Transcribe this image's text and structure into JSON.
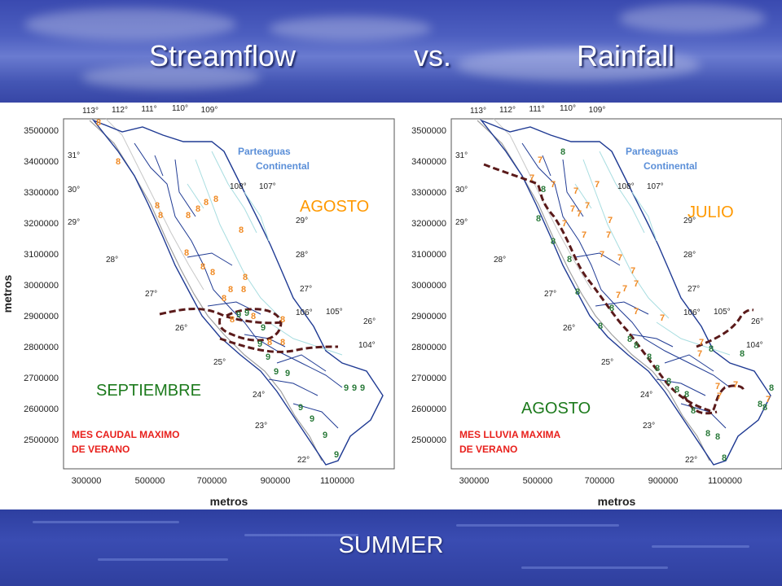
{
  "slide": {
    "title_left": "Streamflow",
    "title_mid": "vs.",
    "title_right": "Rainfall",
    "footer": "SUMMER"
  },
  "colors": {
    "background": "#3b4aa8",
    "title_text": "#ffffff",
    "basin_outline": "#1f3a93",
    "rivers": "#a8dde0",
    "coast": "#9a9a9a",
    "month_orange": "#f08a24",
    "month_green": "#2a7a3a",
    "month_label_orange": "#ff9900",
    "month_label_green": "#1c7a1c",
    "dashed_boundary": "#5a1a1a",
    "legend_red": "#e8201c",
    "parteaguas_blue": "#5b8fd8"
  },
  "maps": [
    {
      "id": "streamflow",
      "y_ticks": [
        "3500000",
        "3400000",
        "3300000",
        "3200000",
        "3100000",
        "3000000",
        "2900000",
        "2800000",
        "2700000",
        "2600000",
        "2500000"
      ],
      "x_ticks": [
        "300000",
        "500000",
        "700000",
        "900000",
        "1100000"
      ],
      "lon_labels": [
        "113°",
        "112°",
        "111°",
        "110°",
        "109°"
      ],
      "interior_labels": [
        "108°",
        "107°",
        "106°",
        "105°",
        "104°",
        "31°",
        "30°",
        "29°",
        "28°",
        "27°",
        "26°",
        "25°",
        "24°",
        "23°",
        "22°",
        "29°",
        "28°",
        "27°",
        "26°"
      ],
      "x_axis_title": "metros",
      "y_axis_title": "metros",
      "divide_label_1": "Parteaguas",
      "divide_label_2": "Continental",
      "month_top": "AGOSTO",
      "month_bottom": "SEPTIEMBRE",
      "legend_line1": "MES CAUDAL MAXIMO",
      "legend_line2": "DE VERANO",
      "digits": [
        "8",
        "8",
        "8",
        "8",
        "8",
        "8",
        "8",
        "8",
        "8",
        "8",
        "8",
        "8",
        "8",
        "8",
        "8",
        "8",
        "8",
        "8",
        "8",
        "8",
        "8",
        "9",
        "9",
        "9",
        "9",
        "9",
        "9",
        "9",
        "9",
        "9",
        "9",
        "9",
        "9",
        "9",
        "9"
      ]
    },
    {
      "id": "rainfall",
      "y_ticks": [
        "3500000",
        "3400000",
        "3300000",
        "3200000",
        "3100000",
        "3000000",
        "2900000",
        "2800000",
        "2700000",
        "2600000",
        "2500000"
      ],
      "x_ticks": [
        "300000",
        "500000",
        "700000",
        "900000",
        "1100000"
      ],
      "lon_labels": [
        "113°",
        "112°",
        "111°",
        "110°",
        "109°"
      ],
      "interior_labels": [
        "108°",
        "107°",
        "106°",
        "105°",
        "104°",
        "31°",
        "30°",
        "29°",
        "28°",
        "27°",
        "26°",
        "25°",
        "24°",
        "23°",
        "22°",
        "29°",
        "28°",
        "27°",
        "26°"
      ],
      "x_axis_title": "metros",
      "divide_label_1": "Parteaguas",
      "divide_label_2": "Continental",
      "month_top": "JULIO",
      "month_bottom": "AGOSTO",
      "legend_line1": "MES LLUVIA MAXIMA",
      "legend_line2": "DE VERANO",
      "digits": [
        "7",
        "7",
        "7",
        "7",
        "7",
        "7",
        "7",
        "7",
        "7",
        "7",
        "7",
        "7",
        "7",
        "7",
        "7",
        "7",
        "7",
        "7",
        "7",
        "7",
        "7",
        "7",
        "7",
        "7",
        "7",
        "7",
        "8",
        "8",
        "8",
        "8",
        "8",
        "8",
        "8",
        "8",
        "8",
        "8",
        "8",
        "8",
        "8",
        "8",
        "8",
        "8",
        "8",
        "8",
        "8",
        "8",
        "8",
        "8",
        "8",
        "8"
      ]
    }
  ]
}
